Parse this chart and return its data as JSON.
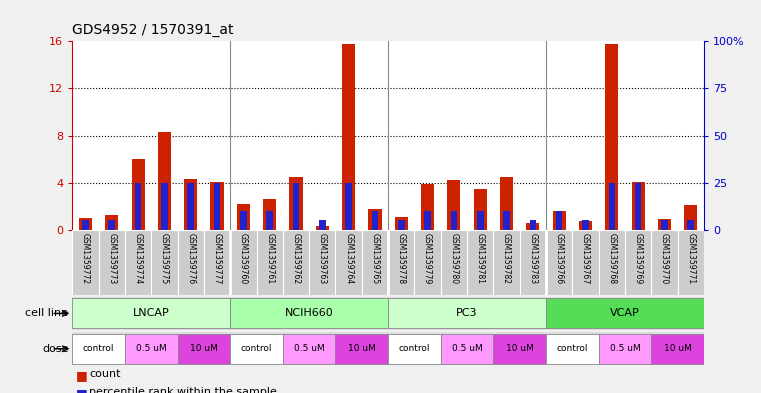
{
  "title": "GDS4952 / 1570391_at",
  "samples": [
    "GSM1359772",
    "GSM1359773",
    "GSM1359774",
    "GSM1359775",
    "GSM1359776",
    "GSM1359777",
    "GSM1359760",
    "GSM1359761",
    "GSM1359762",
    "GSM1359763",
    "GSM1359764",
    "GSM1359765",
    "GSM1359778",
    "GSM1359779",
    "GSM1359780",
    "GSM1359781",
    "GSM1359782",
    "GSM1359783",
    "GSM1359766",
    "GSM1359767",
    "GSM1359768",
    "GSM1359769",
    "GSM1359770",
    "GSM1359771"
  ],
  "counts": [
    1.0,
    1.3,
    6.0,
    8.3,
    4.3,
    4.1,
    2.2,
    2.6,
    4.5,
    0.35,
    15.8,
    1.8,
    1.1,
    3.9,
    4.2,
    3.5,
    4.5,
    0.55,
    1.6,
    0.75,
    15.8,
    4.1,
    0.9,
    2.1
  ],
  "percentiles_pct": [
    5,
    5,
    25,
    25,
    25,
    25,
    10,
    10,
    25,
    5,
    25,
    10,
    5,
    10,
    10,
    10,
    10,
    5,
    10,
    5,
    25,
    25,
    5,
    5
  ],
  "cell_lines": [
    {
      "label": "LNCAP",
      "start": 0,
      "end": 6,
      "color": "#ccffcc"
    },
    {
      "label": "NCIH660",
      "start": 6,
      "end": 12,
      "color": "#aaffaa"
    },
    {
      "label": "PC3",
      "start": 12,
      "end": 18,
      "color": "#ccffcc"
    },
    {
      "label": "VCAP",
      "start": 18,
      "end": 24,
      "color": "#55dd55"
    }
  ],
  "dose_groups": [
    {
      "label": "control",
      "start": 0,
      "end": 2,
      "color": "#ffffff"
    },
    {
      "label": "0.5 uM",
      "start": 2,
      "end": 4,
      "color": "#ff99ff"
    },
    {
      "label": "10 uM",
      "start": 4,
      "end": 6,
      "color": "#dd44dd"
    },
    {
      "label": "control",
      "start": 6,
      "end": 8,
      "color": "#ffffff"
    },
    {
      "label": "0.5 uM",
      "start": 8,
      "end": 10,
      "color": "#ff99ff"
    },
    {
      "label": "10 uM",
      "start": 10,
      "end": 12,
      "color": "#dd44dd"
    },
    {
      "label": "control",
      "start": 12,
      "end": 14,
      "color": "#ffffff"
    },
    {
      "label": "0.5 uM",
      "start": 14,
      "end": 16,
      "color": "#ff99ff"
    },
    {
      "label": "10 uM",
      "start": 16,
      "end": 18,
      "color": "#dd44dd"
    },
    {
      "label": "control",
      "start": 18,
      "end": 20,
      "color": "#ffffff"
    },
    {
      "label": "0.5 uM",
      "start": 20,
      "end": 22,
      "color": "#ff99ff"
    },
    {
      "label": "10 uM",
      "start": 22,
      "end": 24,
      "color": "#dd44dd"
    }
  ],
  "bar_color": "#cc2200",
  "pct_color": "#2222cc",
  "ylim_left": [
    0,
    16
  ],
  "ylim_right": [
    0,
    100
  ],
  "yticks_left": [
    0,
    4,
    8,
    12,
    16
  ],
  "yticks_right": [
    0,
    25,
    50,
    75,
    100
  ],
  "fig_bg": "#f0f0f0",
  "plot_bg": "#ffffff",
  "sample_bg": "#cccccc",
  "title_fontsize": 10,
  "bar_width": 0.5,
  "pct_bar_width": 0.25
}
